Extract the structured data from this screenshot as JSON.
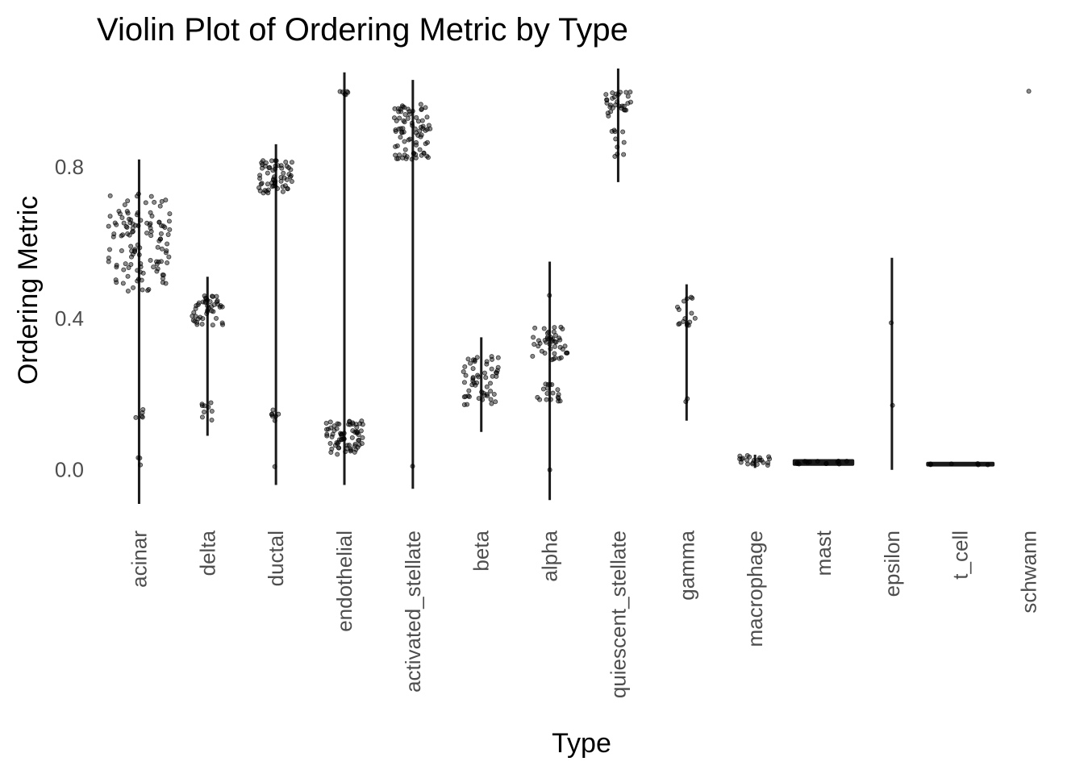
{
  "chart_data": {
    "type": "violin",
    "title": "Violin Plot of Ordering Metric by Type",
    "xlabel": "Type",
    "ylabel": "Ordering Metric",
    "ylim": [
      -0.09,
      1.06
    ],
    "yticks": [
      0.0,
      0.4,
      0.8
    ],
    "ytick_labels": [
      "0.0",
      "0.4",
      "0.8"
    ],
    "grid": false,
    "colors": {
      "violin": "#1a1a1a",
      "points": "#000000"
    },
    "categories": [
      "acinar",
      "delta",
      "ductal",
      "endothelial",
      "activated_stellate",
      "beta",
      "alpha",
      "quiescent_stellate",
      "gamma",
      "macrophage",
      "mast",
      "epsilon",
      "t_cell",
      "schwann"
    ],
    "violins": [
      {
        "category": "acinar",
        "min": -0.09,
        "max": 0.82,
        "clusters": [
          [
            0.47,
            0.73,
            0.5,
            120
          ],
          [
            0.13,
            0.17,
            0.07,
            5
          ],
          [
            0.0,
            0.04,
            0.03,
            3
          ]
        ]
      },
      {
        "category": "delta",
        "min": 0.09,
        "max": 0.51,
        "clusters": [
          [
            0.38,
            0.46,
            0.25,
            45
          ],
          [
            0.13,
            0.19,
            0.1,
            9
          ]
        ]
      },
      {
        "category": "ductal",
        "min": -0.04,
        "max": 0.86,
        "clusters": [
          [
            0.73,
            0.82,
            0.28,
            60
          ],
          [
            0.13,
            0.16,
            0.07,
            7
          ],
          [
            0.0,
            0.01,
            0.02,
            1
          ]
        ]
      },
      {
        "category": "endothelial",
        "min": -0.04,
        "max": 1.05,
        "clusters": [
          [
            0.04,
            0.13,
            0.3,
            70
          ],
          [
            0.99,
            1.0,
            0.08,
            6
          ]
        ]
      },
      {
        "category": "activated_stellate",
        "min": -0.05,
        "max": 1.03,
        "clusters": [
          [
            0.82,
            0.97,
            0.3,
            80
          ],
          [
            0.0,
            0.01,
            0.02,
            1
          ]
        ]
      },
      {
        "category": "beta",
        "min": 0.1,
        "max": 0.35,
        "clusters": [
          [
            0.17,
            0.3,
            0.3,
            55
          ]
        ]
      },
      {
        "category": "alpha",
        "min": -0.08,
        "max": 0.55,
        "clusters": [
          [
            0.29,
            0.38,
            0.3,
            45
          ],
          [
            0.18,
            0.23,
            0.2,
            18
          ],
          [
            0.0,
            0.01,
            0.02,
            1
          ],
          [
            0.46,
            0.47,
            0.02,
            1
          ]
        ]
      },
      {
        "category": "quiescent_stellate",
        "min": 0.76,
        "max": 1.06,
        "clusters": [
          [
            0.93,
            1.0,
            0.22,
            30
          ],
          [
            0.82,
            0.9,
            0.12,
            10
          ]
        ]
      },
      {
        "category": "gamma",
        "min": 0.13,
        "max": 0.49,
        "clusters": [
          [
            0.38,
            0.46,
            0.15,
            16
          ],
          [
            0.15,
            0.19,
            0.03,
            2
          ]
        ]
      },
      {
        "category": "macrophage",
        "min": 0.005,
        "max": 0.04,
        "clusters": [
          [
            0.01,
            0.04,
            0.25,
            22
          ]
        ]
      },
      {
        "category": "mast",
        "min": 0.014,
        "max": 0.025,
        "clusters": [
          [
            0.015,
            0.024,
            0.45,
            14
          ]
        ]
      },
      {
        "category": "epsilon",
        "min": 0.0,
        "max": 0.56,
        "clusters": [
          [
            0.17,
            0.18,
            0.02,
            1
          ],
          [
            0.38,
            0.39,
            0.02,
            1
          ]
        ]
      },
      {
        "category": "t_cell",
        "min": 0.01,
        "max": 0.02,
        "clusters": [
          [
            0.013,
            0.017,
            0.5,
            6
          ]
        ]
      },
      {
        "category": "schwann",
        "min": 1.0,
        "max": 1.0,
        "clusters": [
          [
            1.0,
            1.0,
            0.0,
            1
          ]
        ]
      }
    ]
  }
}
